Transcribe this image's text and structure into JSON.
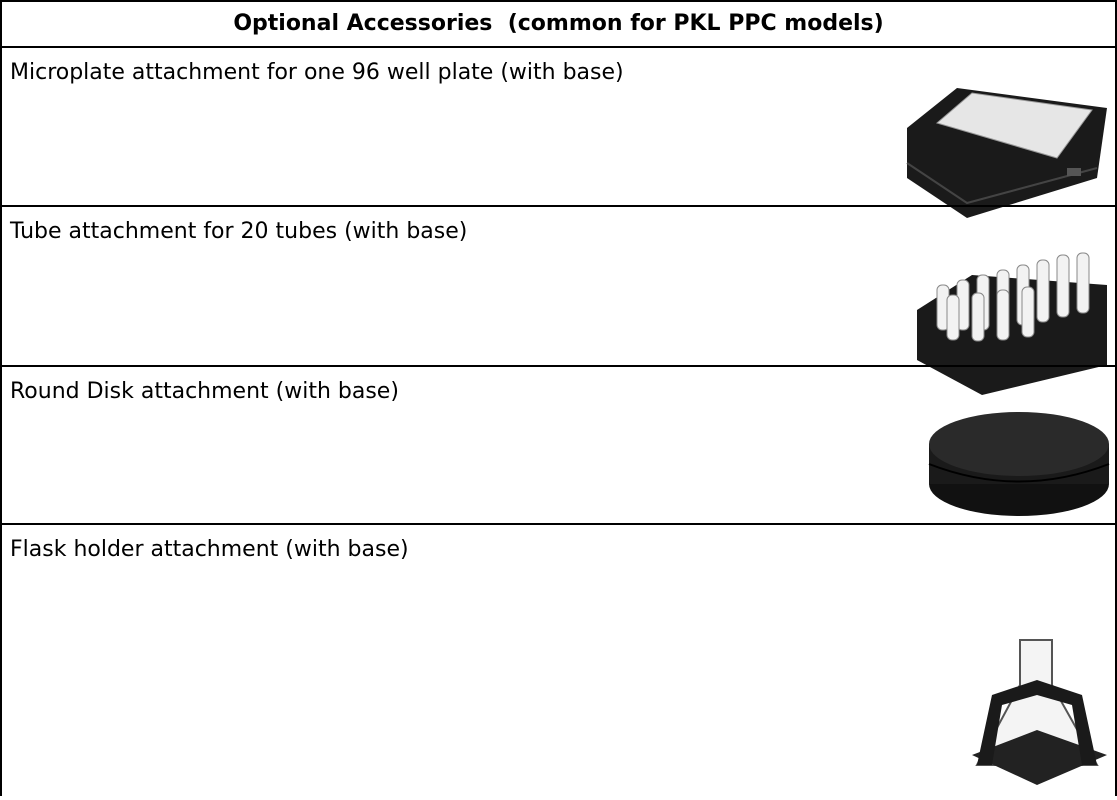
{
  "table": {
    "header": "Optional Accessories  (common for PKL PPC models)",
    "rows": [
      "Microplate attachment for one 96 well plate (with base)",
      "Tube attachment for 20 tubes (with base)",
      "Round Disk attachment (with base)",
      "Flask holder attachment (with base)"
    ]
  }
}
